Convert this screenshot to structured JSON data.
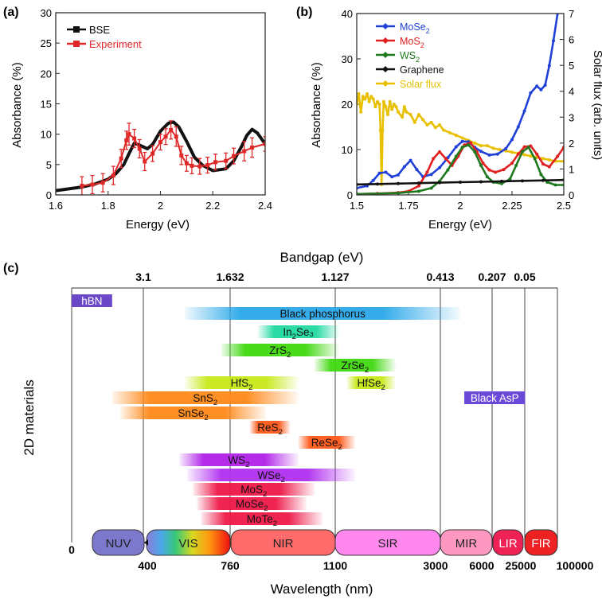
{
  "chart_data": [
    {
      "panel_label": "(a)",
      "type": "line",
      "xlabel": "Energy (eV)",
      "ylabel": "Absorbance (%)",
      "xlim": [
        1.6,
        2.4
      ],
      "ylim": [
        0,
        30
      ],
      "x_ticks": [
        "1.6",
        "1.8",
        "2",
        "2.2",
        "2.4"
      ],
      "y_ticks": [
        "0",
        "5",
        "10",
        "15",
        "20",
        "25",
        "30"
      ],
      "legend_position": "top-left",
      "series": [
        {
          "name": "BSE",
          "color": "#111111",
          "x": [
            1.6,
            1.65,
            1.7,
            1.75,
            1.8,
            1.83,
            1.86,
            1.88,
            1.9,
            1.92,
            1.95,
            1.97,
            2.0,
            2.03,
            2.05,
            2.07,
            2.1,
            2.13,
            2.16,
            2.2,
            2.25,
            2.28,
            2.31,
            2.33,
            2.35,
            2.37,
            2.4
          ],
          "y": [
            0.7,
            1.0,
            1.3,
            1.8,
            2.6,
            3.5,
            5.0,
            6.8,
            8.5,
            8.2,
            7.6,
            8.3,
            10.5,
            11.8,
            12.0,
            11.2,
            8.8,
            6.2,
            4.9,
            4.0,
            4.3,
            5.6,
            8.0,
            9.8,
            10.8,
            10.2,
            8.4
          ]
        },
        {
          "name": "Experiment",
          "color": "#e02828",
          "x": [
            1.7,
            1.74,
            1.78,
            1.82,
            1.85,
            1.87,
            1.88,
            1.9,
            1.92,
            1.94,
            1.97,
            2.0,
            2.02,
            2.04,
            2.06,
            2.08,
            2.1,
            2.12,
            2.15,
            2.18,
            2.21,
            2.25,
            2.28,
            2.32,
            2.35,
            2.4
          ],
          "y": [
            1.5,
            1.7,
            2.0,
            3.2,
            6.0,
            9.0,
            10.0,
            9.3,
            7.6,
            5.5,
            6.8,
            8.7,
            9.6,
            10.7,
            9.6,
            6.5,
            5.2,
            4.8,
            4.7,
            4.9,
            5.4,
            5.6,
            6.4,
            7.2,
            7.8,
            8.4
          ],
          "error": [
            1.5,
            1.5,
            1.5,
            1.5,
            1.5,
            1.5,
            1.8,
            1.5,
            1.5,
            1.5,
            1.3,
            1.3,
            1.3,
            1.5,
            1.6,
            1.5,
            1.3,
            1.3,
            1.3,
            1.3,
            1.3,
            1.3,
            1.3,
            1.6,
            1.6,
            1.2
          ]
        }
      ]
    },
    {
      "panel_label": "(b)",
      "type": "line",
      "xlabel": "Energy (eV)",
      "ylabel": "Absorbance (%)",
      "y2label": "Solar flux (arb. units)",
      "xlim": [
        1.5,
        2.5
      ],
      "ylim": [
        0,
        40
      ],
      "y2lim": [
        0,
        7
      ],
      "x_ticks": [
        "1.5",
        "1.75",
        "2",
        "2.25",
        "2.5"
      ],
      "y_ticks": [
        "0",
        "10",
        "20",
        "30",
        "40"
      ],
      "y2_ticks": [
        "0",
        "1",
        "2",
        "3",
        "4",
        "5",
        "6",
        "7"
      ],
      "legend_position": "top-left",
      "series": [
        {
          "name": "MoSe2",
          "label_main": "MoSe",
          "label_sub": "2",
          "color": "#2040d8",
          "axis": "left",
          "x": [
            1.5,
            1.55,
            1.58,
            1.61,
            1.64,
            1.67,
            1.7,
            1.73,
            1.76,
            1.79,
            1.82,
            1.86,
            1.9,
            1.94,
            1.98,
            2.01,
            2.04,
            2.07,
            2.1,
            2.14,
            2.18,
            2.22,
            2.25,
            2.28,
            2.31,
            2.34,
            2.37,
            2.39,
            2.41,
            2.43,
            2.45,
            2.47
          ],
          "y": [
            1.5,
            2.0,
            3.2,
            4.8,
            5.0,
            4.0,
            4.4,
            6.2,
            7.6,
            5.6,
            4.0,
            4.5,
            6.0,
            8.2,
            10.6,
            11.8,
            11.7,
            10.5,
            9.6,
            8.8,
            9.0,
            10.2,
            12.2,
            15.0,
            18.5,
            22.5,
            24.0,
            23.2,
            24.2,
            28.5,
            34.0,
            40.0
          ]
        },
        {
          "name": "MoS2",
          "label_main": "MoS",
          "label_sub": "2",
          "color": "#e02020",
          "axis": "left",
          "x": [
            1.5,
            1.6,
            1.7,
            1.75,
            1.8,
            1.84,
            1.87,
            1.9,
            1.93,
            1.96,
            1.99,
            2.02,
            2.05,
            2.08,
            2.11,
            2.14,
            2.17,
            2.21,
            2.25,
            2.28,
            2.31,
            2.34,
            2.37,
            2.4,
            2.43,
            2.47,
            2.5
          ],
          "y": [
            0.2,
            0.3,
            0.5,
            0.8,
            2.0,
            5.0,
            8.0,
            9.5,
            8.0,
            6.5,
            8.5,
            11.0,
            11.5,
            9.5,
            7.0,
            5.5,
            5.0,
            5.6,
            7.0,
            9.0,
            10.6,
            10.8,
            9.0,
            6.8,
            6.2,
            8.5,
            10.5
          ]
        },
        {
          "name": "WS2",
          "label_main": "WS",
          "label_sub": "2",
          "color": "#1f7a1f",
          "axis": "left",
          "x": [
            1.5,
            1.7,
            1.8,
            1.86,
            1.9,
            1.94,
            1.98,
            2.01,
            2.04,
            2.07,
            2.1,
            2.13,
            2.16,
            2.2,
            2.24,
            2.27,
            2.3,
            2.33,
            2.36,
            2.39,
            2.42,
            2.46,
            2.5
          ],
          "y": [
            0.2,
            0.4,
            0.8,
            1.5,
            3.0,
            5.5,
            8.5,
            10.5,
            11.0,
            9.5,
            6.5,
            4.0,
            2.8,
            2.5,
            3.5,
            6.5,
            9.5,
            10.5,
            8.0,
            4.5,
            2.8,
            2.2,
            2.2
          ]
        },
        {
          "name": "Graphene",
          "label_main": "Graphene",
          "label_sub": "",
          "color": "#111111",
          "axis": "left",
          "x": [
            1.5,
            1.6,
            1.7,
            1.8,
            1.9,
            2.0,
            2.1,
            2.2,
            2.3,
            2.4,
            2.5
          ],
          "y": [
            2.3,
            2.4,
            2.5,
            2.6,
            2.7,
            2.8,
            2.9,
            3.0,
            3.1,
            3.2,
            3.3
          ]
        },
        {
          "name": "Solar flux",
          "label_main": "Solar flux",
          "label_sub": "",
          "color": "#e8c000",
          "axis": "right",
          "x": [
            1.5,
            1.51,
            1.52,
            1.53,
            1.54,
            1.55,
            1.56,
            1.57,
            1.58,
            1.59,
            1.6,
            1.61,
            1.615,
            1.62,
            1.625,
            1.63,
            1.64,
            1.65,
            1.66,
            1.67,
            1.68,
            1.69,
            1.7,
            1.72,
            1.73,
            1.74,
            1.76,
            1.78,
            1.8,
            1.82,
            1.84,
            1.86,
            1.88,
            1.9,
            1.92,
            1.95,
            1.98,
            2.01,
            2.04,
            2.07,
            2.1,
            2.13,
            2.16,
            2.19,
            2.22,
            2.25,
            2.28,
            2.31,
            2.34,
            2.37,
            2.4,
            2.43,
            2.46,
            2.5
          ],
          "y": [
            3.5,
            3.9,
            3.2,
            3.8,
            3.7,
            3.9,
            3.6,
            3.8,
            3.7,
            3.4,
            3.6,
            3.5,
            2.5,
            0.4,
            2.5,
            3.6,
            3.4,
            3.1,
            3.6,
            3.3,
            3.5,
            3.4,
            3.2,
            3.0,
            3.4,
            3.2,
            3.1,
            2.8,
            3.1,
            2.9,
            2.7,
            2.8,
            2.6,
            2.7,
            2.5,
            2.4,
            2.3,
            2.2,
            2.1,
            2.0,
            1.9,
            1.9,
            1.8,
            1.75,
            1.7,
            1.65,
            1.6,
            1.55,
            1.5,
            1.45,
            1.4,
            1.35,
            1.3,
            1.3
          ]
        }
      ]
    },
    {
      "panel_label": "(c)",
      "type": "range-bar",
      "title": "Bandgap (eV)",
      "xlabel": "Wavelength (nm)",
      "ylabel": "2D materials",
      "bandgap_ticks": [
        "3.1",
        "1.632",
        "1.127",
        "0.413",
        "0.207",
        "0.05"
      ],
      "wavelength_ticks": [
        "0",
        "400",
        "760",
        "1100",
        "3000",
        "6000",
        "25000",
        "100000"
      ],
      "regions": [
        {
          "label": "NUV",
          "color": "#7c78cc"
        },
        {
          "label": "VIS",
          "color": "#ff8800"
        },
        {
          "label": "NIR",
          "color": "#ff6a6a"
        },
        {
          "label": "SIR",
          "color": "#ff88ee"
        },
        {
          "label": "MIR",
          "color": "#ff98c0"
        },
        {
          "label": "LIR",
          "color": "#ee2255"
        },
        {
          "label": "FIR",
          "color": "#ee2222"
        }
      ],
      "materials": [
        {
          "name": "hBN",
          "main": "hBN",
          "sub": "",
          "suffix": "",
          "color": "#6a48c8",
          "range": [
            0,
            0.5
          ]
        },
        {
          "name": "Black phosphorus",
          "main": "Black phosphorus",
          "sub": "",
          "suffix": "",
          "color": "#2aa8e8",
          "range": [
            1.4,
            4.8
          ]
        },
        {
          "name": "In2Se3",
          "main": "In",
          "sub": "2",
          "suffix": "Se₃",
          "color": "#20d8a0",
          "range": [
            2.3,
            3.3
          ]
        },
        {
          "name": "ZrS2",
          "main": "ZrS",
          "sub": "2",
          "suffix": "",
          "color": "#40d810",
          "range": [
            1.85,
            3.3
          ]
        },
        {
          "name": "ZrSe2",
          "main": "ZrSe",
          "sub": "2",
          "suffix": "",
          "color": "#40d810",
          "range": [
            3.0,
            4.0
          ]
        },
        {
          "name": "HfS2",
          "main": "HfS",
          "sub": "2",
          "suffix": "",
          "color": "#c8e818",
          "range": [
            1.4,
            2.8
          ]
        },
        {
          "name": "HfSe2",
          "main": "HfSe",
          "sub": "2",
          "suffix": "",
          "color": "#c8e818",
          "range": [
            3.4,
            4.0
          ]
        },
        {
          "name": "SnS2",
          "main": "SnS",
          "sub": "2",
          "suffix": "",
          "color": "#ff8818",
          "range": [
            0.5,
            2.8
          ]
        },
        {
          "name": "SnSe2",
          "main": "SnSe",
          "sub": "2",
          "suffix": "",
          "color": "#ff8818",
          "range": [
            0.6,
            2.4
          ]
        },
        {
          "name": "ReS2",
          "main": "ReS",
          "sub": "2",
          "suffix": "",
          "color": "#ff5818",
          "range": [
            2.2,
            2.7
          ]
        },
        {
          "name": "ReSe2",
          "main": "ReSe",
          "sub": "2",
          "suffix": "",
          "color": "#ff5818",
          "range": [
            2.8,
            3.5
          ]
        },
        {
          "name": "Black AsP",
          "main": "Black AsP",
          "sub": "",
          "suffix": "",
          "color": "#6a48d8",
          "range": [
            4.85,
            5.6
          ]
        },
        {
          "name": "WS2",
          "main": "WS",
          "sub": "2",
          "suffix": "",
          "color": "#b020e8",
          "range": [
            1.33,
            2.8
          ]
        },
        {
          "name": "WSe2",
          "main": "WSe",
          "sub": "2",
          "suffix": "",
          "color": "#b030f0",
          "range": [
            1.43,
            3.5
          ]
        },
        {
          "name": "MoS2",
          "main": "MoS",
          "sub": "2",
          "suffix": "",
          "color": "#ee1848",
          "range": [
            1.5,
            3.0
          ]
        },
        {
          "name": "MoSe2",
          "main": "MoSe",
          "sub": "2",
          "suffix": "",
          "color": "#ee1848",
          "range": [
            1.55,
            2.9
          ]
        },
        {
          "name": "MoTe2",
          "main": "MoTe",
          "sub": "2",
          "suffix": "",
          "color": "#ee1848",
          "range": [
            1.6,
            3.1
          ]
        }
      ]
    }
  ]
}
